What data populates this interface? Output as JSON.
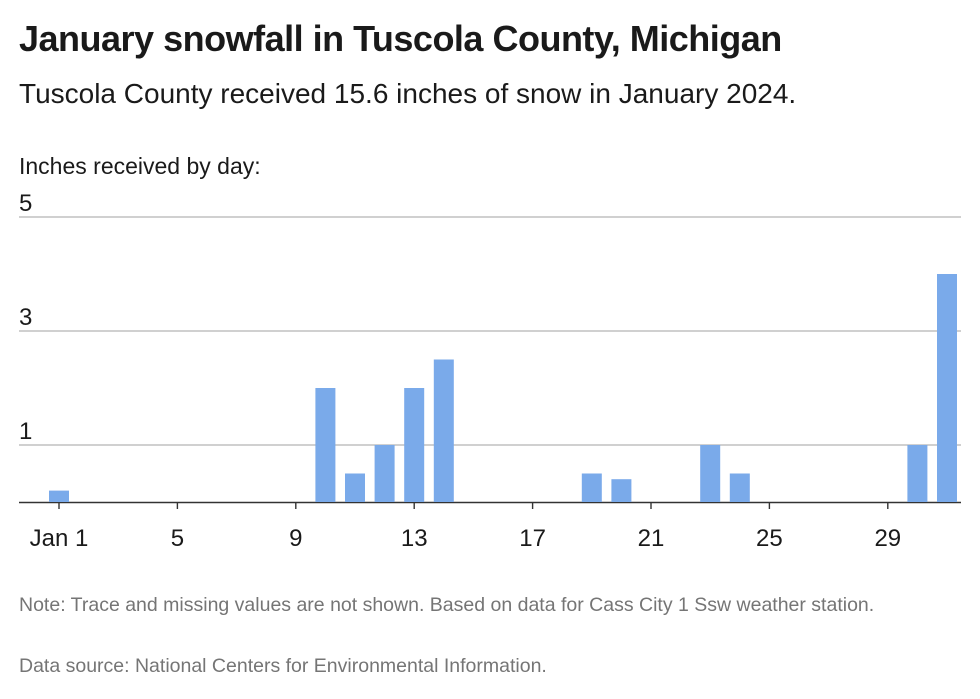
{
  "header": {
    "title": "January snowfall in Tuscola County, Michigan",
    "subtitle": "Tuscola County received 15.6 inches of snow in January 2024."
  },
  "chart_data": {
    "type": "bar",
    "title": "January snowfall in Tuscola County, Michigan",
    "subtitle": "Tuscola County received 15.6 inches of snow in January 2024.",
    "ylabel": "Inches received by day:",
    "xlabel": "",
    "ylim": [
      0,
      5
    ],
    "yticks": [
      1,
      3,
      5
    ],
    "grid": true,
    "bar_color": "#7aaaea",
    "categories": [
      1,
      2,
      3,
      4,
      5,
      6,
      7,
      8,
      9,
      10,
      11,
      12,
      13,
      14,
      15,
      16,
      17,
      18,
      19,
      20,
      21,
      22,
      23,
      24,
      25,
      26,
      27,
      28,
      29,
      30,
      31
    ],
    "values": [
      0.2,
      0,
      0,
      0,
      0,
      0,
      0,
      0,
      0,
      2,
      0.5,
      1,
      2,
      2.5,
      0,
      0,
      0,
      0,
      0.5,
      0.4,
      0,
      0,
      1,
      0.5,
      0,
      0,
      0,
      0,
      0,
      1,
      4
    ],
    "xticks": [
      {
        "day": 1,
        "label": "Jan 1"
      },
      {
        "day": 5,
        "label": "5"
      },
      {
        "day": 9,
        "label": "9"
      },
      {
        "day": 13,
        "label": "13"
      },
      {
        "day": 17,
        "label": "17"
      },
      {
        "day": 21,
        "label": "21"
      },
      {
        "day": 25,
        "label": "25"
      },
      {
        "day": 29,
        "label": "29"
      }
    ]
  },
  "footer": {
    "note": "Note: Trace and missing values are not shown. Based on data for Cass City 1 Ssw weather station.",
    "source": "Data source: National Centers for Environmental Information."
  }
}
